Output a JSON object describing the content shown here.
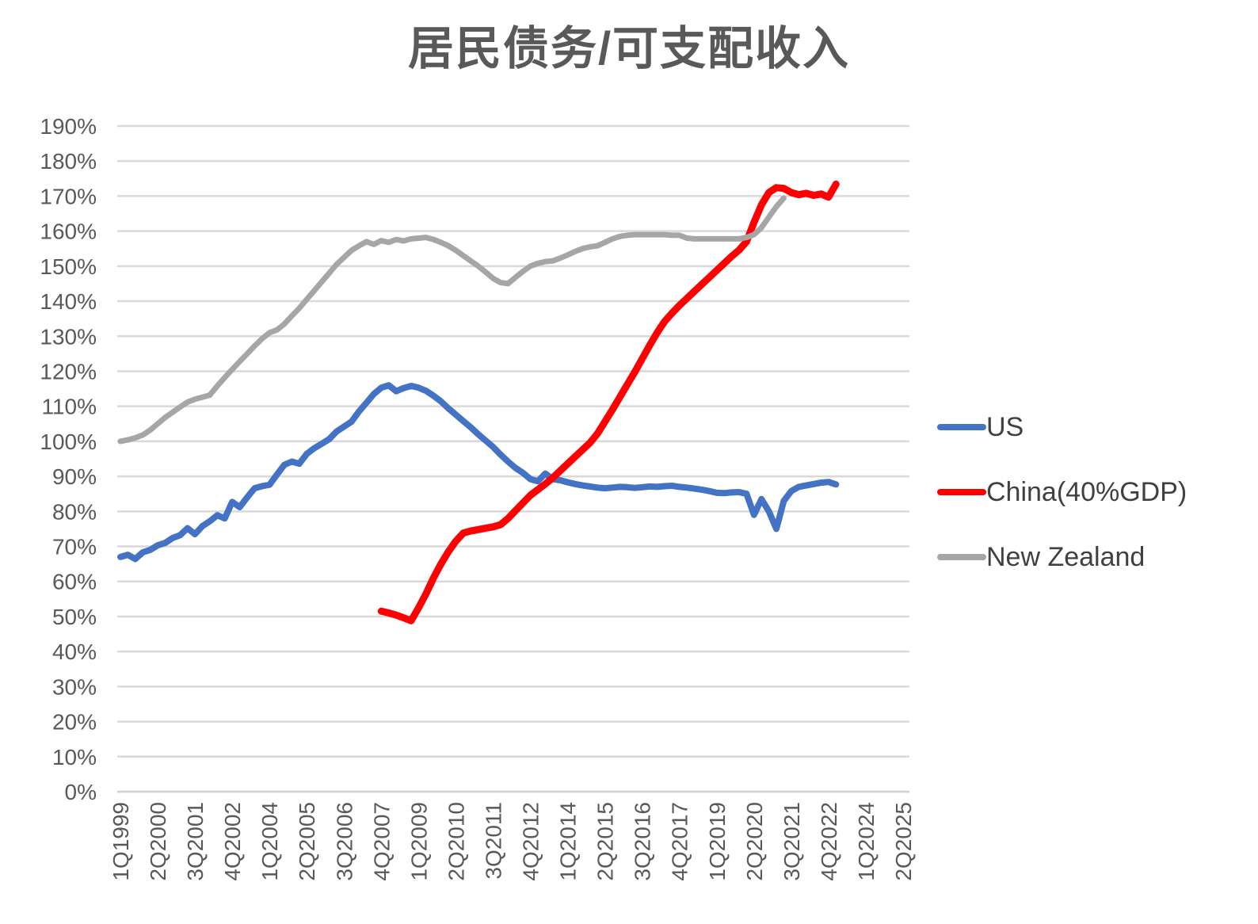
{
  "title": "居民债务/可支配收入",
  "legend": {
    "items": [
      {
        "label": "US",
        "color": "#4472C4"
      },
      {
        "label": "China(40%GDP)",
        "color": "#FF0000"
      },
      {
        "label": "New Zealand",
        "color": "#A6A6A6"
      }
    ]
  },
  "chart_data": {
    "type": "line",
    "title": "居民债务/可支配收入",
    "ylabel": "",
    "xlabel": "",
    "y_axis": {
      "min": 0,
      "max": 190,
      "step": 10,
      "unit": "%"
    },
    "grid": true,
    "legend_position": "right",
    "x_quarter_count": 106,
    "x_tick_step_quarters": 5,
    "x_tick_labels": [
      "1Q1999",
      "2Q2000",
      "3Q2001",
      "4Q2002",
      "1Q2004",
      "2Q2005",
      "3Q2006",
      "4Q2007",
      "1Q2009",
      "2Q2010",
      "3Q2011",
      "4Q2012",
      "1Q2014",
      "2Q2015",
      "3Q2016",
      "4Q2017",
      "1Q2019",
      "2Q2020",
      "3Q2021",
      "4Q2022",
      "1Q2024",
      "2Q2025"
    ],
    "series": [
      {
        "name": "US",
        "color": "#4472C4",
        "stroke_width": 8,
        "start_quarter_index": 0,
        "start_quarter_label": "1Q1999",
        "values": [
          67.0,
          67.6,
          66.4,
          68.3,
          69.0,
          70.3,
          71.0,
          72.4,
          73.2,
          75.2,
          73.5,
          75.8,
          77.2,
          78.9,
          78.0,
          82.7,
          81.2,
          84.0,
          86.6,
          87.2,
          87.6,
          90.5,
          93.3,
          94.2,
          93.6,
          96.4,
          98.0,
          99.3,
          100.6,
          102.8,
          104.2,
          105.6,
          108.5,
          111.0,
          113.5,
          115.3,
          116.0,
          114.3,
          115.2,
          115.8,
          115.3,
          114.4,
          113.0,
          111.4,
          109.4,
          107.6,
          105.8,
          104.0,
          102.0,
          100.2,
          98.4,
          96.2,
          94.2,
          92.4,
          91.0,
          89.2,
          88.6,
          90.8,
          89.2,
          88.9,
          88.3,
          87.8,
          87.4,
          87.1,
          86.8,
          86.6,
          86.8,
          87.0,
          86.9,
          86.7,
          86.9,
          87.1,
          87.0,
          87.2,
          87.3,
          87.0,
          86.8,
          86.5,
          86.2,
          85.8,
          85.3,
          85.2,
          85.4,
          85.5,
          85.0,
          79.0,
          83.5,
          80.0,
          75.0,
          83.0,
          85.8,
          87.0,
          87.4,
          87.8,
          88.2,
          88.4,
          87.7
        ]
      },
      {
        "name": "China(40%GDP)",
        "color": "#FF0000",
        "stroke_width": 9,
        "start_quarter_index": 35,
        "start_quarter_label": "4Q2007",
        "values": [
          51.5,
          51.0,
          50.4,
          49.6,
          48.8,
          52.5,
          56.5,
          61.0,
          65.0,
          68.5,
          71.5,
          73.8,
          74.4,
          74.8,
          75.2,
          75.6,
          76.2,
          78.0,
          80.2,
          82.4,
          84.6,
          86.2,
          87.8,
          89.6,
          91.6,
          93.6,
          95.6,
          97.6,
          99.6,
          102.2,
          105.6,
          109.0,
          112.6,
          116.2,
          119.8,
          123.6,
          127.4,
          131.0,
          134.2,
          136.6,
          138.8,
          140.8,
          142.8,
          144.8,
          146.8,
          148.8,
          150.8,
          152.8,
          154.6,
          157.0,
          162.5,
          167.5,
          171.0,
          172.4,
          172.2,
          171.0,
          170.4,
          170.8,
          170.2,
          170.6,
          169.7,
          173.4
        ]
      },
      {
        "name": "New Zealand",
        "color": "#A6A6A6",
        "stroke_width": 7,
        "start_quarter_index": 0,
        "start_quarter_label": "1Q1999",
        "values": [
          100.0,
          100.4,
          101.0,
          101.8,
          103.2,
          105.0,
          106.8,
          108.3,
          109.8,
          111.2,
          112.0,
          112.6,
          113.2,
          115.8,
          118.2,
          120.5,
          122.8,
          125.0,
          127.2,
          129.3,
          131.0,
          131.8,
          133.5,
          135.8,
          138.0,
          140.5,
          143.0,
          145.5,
          148.0,
          150.5,
          152.5,
          154.5,
          155.8,
          157.0,
          156.2,
          157.3,
          156.8,
          157.6,
          157.2,
          157.8,
          158.0,
          158.2,
          157.6,
          156.8,
          155.8,
          154.5,
          153.0,
          151.5,
          150.0,
          148.3,
          146.5,
          145.3,
          145.0,
          146.8,
          148.5,
          150.0,
          150.8,
          151.3,
          151.5,
          152.3,
          153.2,
          154.2,
          155.0,
          155.5,
          155.8,
          156.8,
          157.8,
          158.5,
          158.8,
          159.0,
          159.0,
          159.0,
          159.0,
          159.0,
          158.8,
          158.8,
          158.0,
          157.8,
          157.8,
          157.8,
          157.8,
          157.8,
          157.8,
          157.8,
          158.2,
          159.0,
          161.0,
          164.0,
          167.0,
          169.4
        ]
      }
    ],
    "colors": {
      "gridline": "#D9D9D9",
      "axis_line": "#D0D0D0",
      "tick_label": "#595959",
      "title": "#595959",
      "legend_label": "#404040"
    }
  }
}
